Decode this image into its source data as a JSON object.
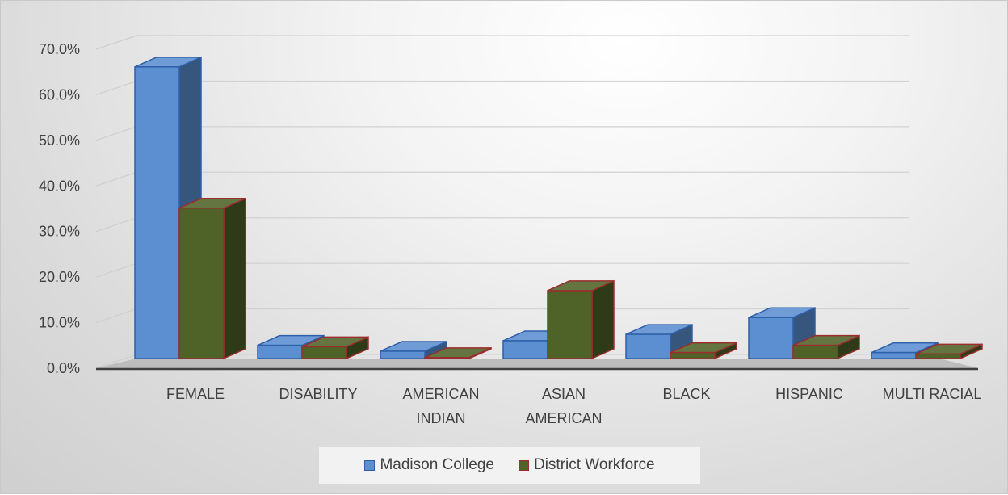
{
  "chart_data": {
    "type": "bar",
    "categories": [
      "FEMALE",
      "DISABILITY",
      "AMERICAN INDIAN",
      "ASIAN AMERICAN",
      "BLACK",
      "HISPANIC",
      "MULTI RACIAL"
    ],
    "category_lines": [
      [
        "FEMALE"
      ],
      [
        "DISABILITY"
      ],
      [
        "AMERICAN",
        "INDIAN"
      ],
      [
        "ASIAN",
        "AMERICAN"
      ],
      [
        "BLACK"
      ],
      [
        "HISPANIC"
      ],
      [
        "MULTI RACIAL"
      ]
    ],
    "series": [
      {
        "name": "Madison College",
        "values": [
          64.0,
          2.9,
          1.6,
          3.9,
          5.3,
          9.0,
          1.3
        ],
        "color": "#5b8fd1",
        "edge": "#2e5fa8"
      },
      {
        "name": "District Workforce",
        "values": [
          33.0,
          2.6,
          0.2,
          14.9,
          1.3,
          2.9,
          1.0
        ],
        "color": "#4f6228",
        "edge": "#9b2d2d"
      }
    ],
    "yticks": [
      "0.0%",
      "10.0%",
      "20.0%",
      "30.0%",
      "40.0%",
      "50.0%",
      "60.0%",
      "70.0%"
    ],
    "ylim": [
      0,
      70
    ],
    "grid": true,
    "legend": "bottom"
  }
}
